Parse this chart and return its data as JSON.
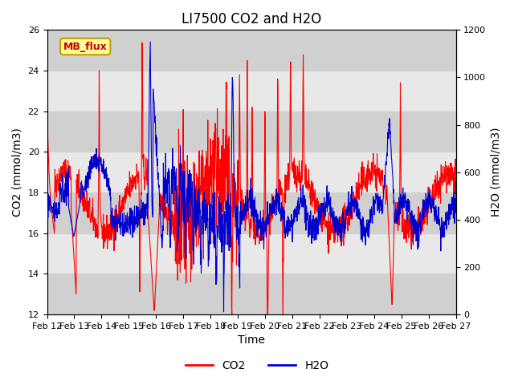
{
  "title": "LI7500 CO2 and H2O",
  "xlabel": "Time",
  "ylabel_left": "CO2 (mmol/m3)",
  "ylabel_right": "H2O (mmol/m3)",
  "ylim_left": [
    12,
    26
  ],
  "ylim_right": [
    0,
    1200
  ],
  "yticks_left": [
    12,
    14,
    16,
    18,
    20,
    22,
    24,
    26
  ],
  "yticks_right": [
    0,
    200,
    400,
    600,
    800,
    1000,
    1200
  ],
  "xtick_labels": [
    "Feb 12",
    "Feb 13",
    "Feb 14",
    "Feb 15",
    "Feb 16",
    "Feb 17",
    "Feb 18",
    "Feb 19",
    "Feb 20",
    "Feb 21",
    "Feb 22",
    "Feb 23",
    "Feb 24",
    "Feb 25",
    "Feb 26",
    "Feb 27"
  ],
  "n_days": 16,
  "n_points": 1600,
  "background_color": "#ffffff",
  "plot_bg_color": "#e8e8e8",
  "band_color": "#d0d0d0",
  "co2_color": "#ff0000",
  "h2o_color": "#0000cc",
  "annotation_text": "MB_flux",
  "annotation_bg": "#ffff99",
  "annotation_border": "#cc9900",
  "annotation_text_color": "#cc0000",
  "legend_co2": "CO2",
  "legend_h2o": "H2O",
  "title_fontsize": 12,
  "label_fontsize": 10,
  "tick_fontsize": 8
}
